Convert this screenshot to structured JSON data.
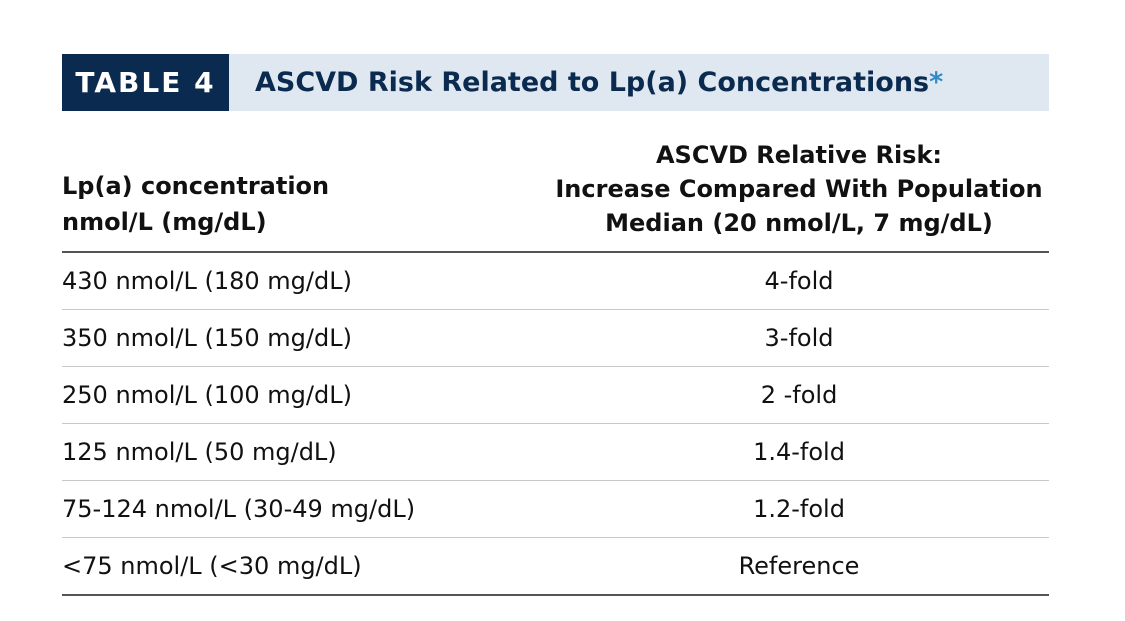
{
  "table": {
    "label": "TABLE 4",
    "title": "ASCVD Risk Related to Lp(a) Concentrations",
    "title_marker": "*",
    "header": {
      "col1_line1": "Lp(a) concentration",
      "col1_line2": "nmol/L (mg/dL)",
      "col2_line1": "ASCVD Relative Risk:",
      "col2_line2": "Increase Compared With Population",
      "col2_line3": "Median (20 nmol/L, 7 mg/dL)"
    },
    "rows": [
      {
        "concentration": "430 nmol/L (180 mg/dL)",
        "risk": "4-fold"
      },
      {
        "concentration": "350 nmol/L (150 mg/dL)",
        "risk": "3-fold"
      },
      {
        "concentration": "250 nmol/L (100 mg/dL)",
        "risk": "2 -fold"
      },
      {
        "concentration": "125 nmol/L (50 mg/dL)",
        "risk": "1.4-fold"
      },
      {
        "concentration": "75-124 nmol/L (30-49 mg/dL)",
        "risk": "1.2-fold"
      },
      {
        "concentration": "<75 nmol/L (<30 mg/dL)",
        "risk": "Reference"
      }
    ]
  },
  "colors": {
    "label_bg": "#0b2a4f",
    "title_bar_bg": "#dfe8f0",
    "title_text": "#0b2a4f",
    "asterisk": "#2f8ac6"
  }
}
